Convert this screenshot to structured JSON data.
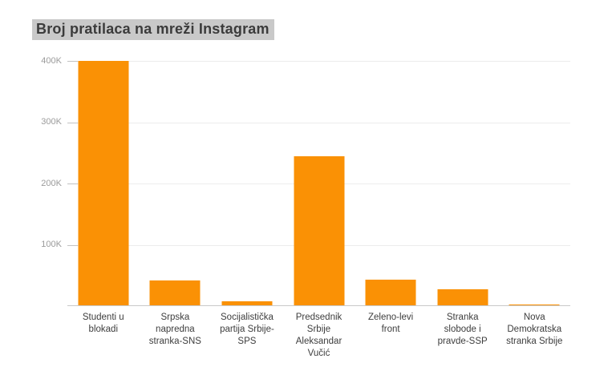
{
  "title": "Broj pratilaca na mreži Instagram",
  "colors": {
    "background": "#FFFFFF",
    "bar": "#FA9105",
    "title_bg": "#C9C9C9",
    "title_text": "#3B3B3B",
    "grid": "#ECECEC",
    "tick": "#C2C2C2",
    "baseline": "#C9C9C9",
    "axis_label": "#9B9B9B",
    "category_label": "#3D3D3D"
  },
  "chart_data": {
    "type": "bar",
    "title": "Broj pratilaca na mreži Instagram",
    "categories": [
      "Studenti u blokadi",
      "Srpska napredna stranka-SNS",
      "Socijalistička partija Srbije-SPS",
      "Predsednik Srbije Aleksandar Vučić",
      "Zeleno-levi front",
      "Stranka slobode i pravde-SSP",
      "Nova Demokratska stranka Srbije"
    ],
    "values": [
      400000,
      42000,
      8000,
      245000,
      43000,
      28000,
      3000
    ],
    "x_label_lines": [
      [
        "Studenti u",
        "blokadi"
      ],
      [
        "Srpska",
        "napredna",
        "stranka-SNS"
      ],
      [
        "Socijalistička",
        "partija Srbije-",
        "SPS"
      ],
      [
        "Predsednik",
        "Srbije",
        "Aleksandar",
        "Vučić"
      ],
      [
        "Zeleno-levi",
        "front"
      ],
      [
        "Stranka",
        "slobode i",
        "pravde-SSP"
      ],
      [
        "Nova",
        "Demokratska",
        "stranka Srbije"
      ]
    ],
    "y_tick_labels": [
      "400K",
      "300K",
      "200K",
      "100K"
    ],
    "y_tick_values": [
      400000,
      300000,
      200000,
      100000
    ],
    "ylim": [
      0,
      400000
    ],
    "xlabel": "",
    "ylabel": "",
    "grid": true,
    "legend": "none",
    "bar_color": "#FA9105"
  }
}
